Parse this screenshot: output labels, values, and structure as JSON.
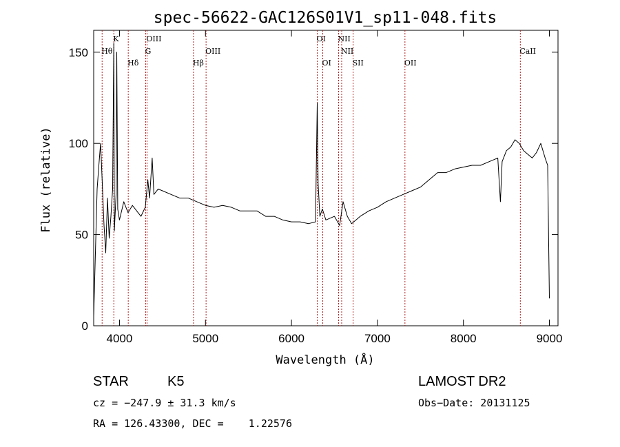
{
  "chart_data": {
    "type": "line",
    "title": "spec-56622-GAC126S01V1_sp11-048.fits",
    "xlabel": "Wavelength (Å)",
    "ylabel": "Flux (relative)",
    "xlim": [
      3700,
      9100
    ],
    "ylim": [
      0,
      162
    ],
    "x_ticks": [
      4000,
      5000,
      6000,
      7000,
      8000,
      9000
    ],
    "y_ticks": [
      0,
      50,
      100,
      150
    ],
    "line_color": "#000000",
    "marker_color": "#b22222",
    "series": [
      {
        "x": [
          3700,
          3720,
          3740,
          3760,
          3780,
          3800,
          3820,
          3840,
          3860,
          3880,
          3900,
          3920,
          3934,
          3940,
          3960,
          3968,
          3980,
          4000,
          4050,
          4100,
          4150,
          4200,
          4250,
          4300,
          4330,
          4350,
          4380,
          4400,
          4450,
          4500,
          4600,
          4700,
          4800,
          4900,
          5000,
          5100,
          5200,
          5300,
          5400,
          5500,
          5600,
          5700,
          5800,
          5900,
          6000,
          6100,
          6200,
          6280,
          6300,
          6310,
          6330,
          6360,
          6400,
          6500,
          6560,
          6600,
          6650,
          6700,
          6800,
          6900,
          7000,
          7100,
          7200,
          7300,
          7400,
          7500,
          7600,
          7700,
          7800,
          7900,
          8000,
          8100,
          8200,
          8300,
          8400,
          8430,
          8450,
          8500,
          8550,
          8600,
          8650,
          8700,
          8750,
          8800,
          8850,
          8900,
          8950,
          8980,
          9000
        ],
        "y": [
          5,
          40,
          75,
          88,
          100,
          78,
          55,
          40,
          70,
          48,
          60,
          75,
          155,
          52,
          72,
          150,
          64,
          58,
          68,
          62,
          66,
          63,
          60,
          65,
          80,
          70,
          92,
          72,
          75,
          74,
          72,
          70,
          70,
          68,
          66,
          65,
          66,
          65,
          63,
          63,
          63,
          60,
          60,
          58,
          57,
          57,
          56,
          57,
          122,
          78,
          60,
          64,
          58,
          60,
          55,
          68,
          60,
          56,
          60,
          63,
          65,
          68,
          70,
          72,
          74,
          76,
          80,
          84,
          84,
          86,
          87,
          88,
          88,
          90,
          92,
          68,
          90,
          96,
          98,
          102,
          100,
          96,
          94,
          92,
          95,
          100,
          92,
          88,
          15
        ]
      }
    ],
    "lines": [
      {
        "label": "Hθ",
        "x": 3798,
        "row": 1
      },
      {
        "label": "K",
        "x": 3934,
        "row": 0
      },
      {
        "label": "Hδ",
        "x": 4102,
        "row": 2
      },
      {
        "label": "OIII",
        "x": 4320,
        "row": 0
      },
      {
        "label": "G",
        "x": 4305,
        "row": 1
      },
      {
        "label": "Hβ",
        "x": 4861,
        "row": 2
      },
      {
        "label": "OIII",
        "x": 5007,
        "row": 1
      },
      {
        "label": "OI",
        "x": 6300,
        "row": 0
      },
      {
        "label": "OI",
        "x": 6364,
        "row": 2
      },
      {
        "label": "NII",
        "x": 6548,
        "row": 0
      },
      {
        "label": "NII",
        "x": 6584,
        "row": 1
      },
      {
        "label": "SII",
        "x": 6717,
        "row": 2
      },
      {
        "label": "OII",
        "x": 7320,
        "row": 2
      },
      {
        "label": "CaII",
        "x": 8662,
        "row": 1
      }
    ]
  },
  "info": {
    "class_label": "STAR",
    "subclass": "K5",
    "survey": "LAMOST DR2",
    "cz_line": "cz = −247.9 ± 31.3 km/s",
    "obs_date": "Obs−Date: 20131125",
    "coords": "RA = 126.43300, DEC =    1.22576"
  }
}
